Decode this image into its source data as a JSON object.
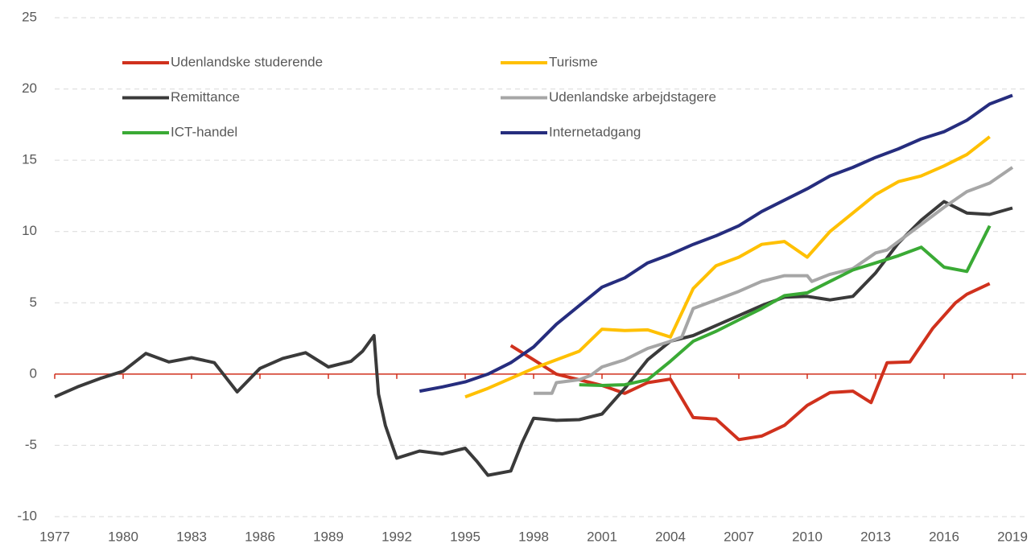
{
  "chart_data": {
    "type": "line",
    "grid": true,
    "legend": "top-left",
    "xlim": [
      1977,
      2019.6
    ],
    "ylim": [
      -10,
      25
    ],
    "xticks": [
      1977,
      1980,
      1983,
      1986,
      1989,
      1992,
      1995,
      1998,
      2001,
      2004,
      2007,
      2010,
      2013,
      2016,
      2019
    ],
    "yticks": [
      -10,
      -5,
      0,
      5,
      10,
      15,
      20,
      25
    ],
    "series": [
      {
        "name": "Udenlandske studerende",
        "color": "#d0311d",
        "x": [
          1997,
          1998,
          1999,
          2000,
          2001,
          2002,
          2003,
          2004,
          2005,
          2006,
          2007,
          2008,
          2009,
          2010,
          2011,
          2012,
          2012.8,
          2013.5,
          2014.5,
          2015.5,
          2016.5,
          2017,
          2018
        ],
        "values": [
          2.0,
          1.0,
          0,
          -0.4,
          -0.8,
          -1.35,
          -0.6,
          -0.35,
          -3.05,
          -3.15,
          -4.6,
          -4.35,
          -3.6,
          -2.2,
          -1.3,
          -1.2,
          -2.0,
          0.8,
          0.85,
          3.2,
          5.0,
          5.6,
          6.35
        ]
      },
      {
        "name": "Turisme",
        "color": "#ffc000",
        "x": [
          1995,
          1996,
          1997,
          1998,
          1999,
          2000,
          2001,
          2002,
          2003,
          2004,
          2005,
          2006,
          2007,
          2008,
          2009,
          2010,
          2011,
          2012,
          2013,
          2014,
          2015,
          2016,
          2017,
          2018
        ],
        "values": [
          -1.6,
          -1.0,
          -0.3,
          0.4,
          1.0,
          1.6,
          3.15,
          3.05,
          3.1,
          2.6,
          6.0,
          7.6,
          8.2,
          9.1,
          9.3,
          8.2,
          10.0,
          11.3,
          12.6,
          13.5,
          13.9,
          14.6,
          15.4,
          16.65
        ]
      },
      {
        "name": "Remittance",
        "color": "#3a3a3a",
        "x": [
          1977,
          1978,
          1979,
          1980,
          1981,
          1982,
          1983,
          1984,
          1985,
          1986,
          1987,
          1988,
          1989,
          1990,
          1990.5,
          1991,
          1991.2,
          1991.5,
          1991.8,
          1992,
          1993,
          1994,
          1995,
          1995.5,
          1996,
          1997,
          1997.5,
          1998,
          1999,
          2000,
          2001,
          2002,
          2003,
          2004,
          2005,
          2006,
          2007,
          2008,
          2009,
          2010,
          2011,
          2012,
          2013,
          2014,
          2015,
          2016,
          2017,
          2018,
          2019
        ],
        "values": [
          -1.6,
          -0.9,
          -0.3,
          0.2,
          1.45,
          0.85,
          1.15,
          0.8,
          -1.25,
          0.4,
          1.1,
          1.5,
          0.5,
          0.9,
          1.6,
          2.7,
          -1.4,
          -3.6,
          -5.0,
          -5.9,
          -5.4,
          -5.6,
          -5.2,
          -6.1,
          -7.1,
          -6.8,
          -4.8,
          -3.1,
          -3.25,
          -3.2,
          -2.8,
          -1.0,
          1.0,
          2.3,
          2.7,
          3.4,
          4.1,
          4.8,
          5.4,
          5.45,
          5.2,
          5.45,
          7.1,
          9.2,
          10.8,
          12.1,
          11.3,
          11.2,
          11.65
        ]
      },
      {
        "name": "Udenlandske arbejdstagere",
        "color": "#a6a6a6",
        "x": [
          1998,
          1998.8,
          1999,
          2000,
          2000.5,
          2001,
          2002,
          2003,
          2004,
          2004.5,
          2005,
          2006,
          2007,
          2008,
          2009,
          2010,
          2010.2,
          2011,
          2012,
          2013,
          2013.5,
          2014,
          2015,
          2016,
          2017,
          2018,
          2019
        ],
        "values": [
          -1.35,
          -1.35,
          -0.6,
          -0.4,
          -0.1,
          0.5,
          1.0,
          1.8,
          2.3,
          2.6,
          4.6,
          5.2,
          5.8,
          6.5,
          6.9,
          6.9,
          6.5,
          7.0,
          7.4,
          8.5,
          8.7,
          9.3,
          10.5,
          11.7,
          12.8,
          13.4,
          14.5
        ]
      },
      {
        "name": "ICT-handel",
        "color": "#3aaa35",
        "x": [
          2000,
          2001,
          2002,
          2003,
          2004,
          2005,
          2006,
          2007,
          2008,
          2009,
          2010,
          2011,
          2012,
          2013,
          2014,
          2015,
          2016,
          2017,
          2018
        ],
        "values": [
          -0.75,
          -0.8,
          -0.75,
          -0.4,
          0.9,
          2.3,
          3.0,
          3.8,
          4.6,
          5.5,
          5.7,
          6.5,
          7.3,
          7.8,
          8.3,
          8.9,
          7.5,
          7.2,
          10.4
        ]
      },
      {
        "name": "Internetadgang",
        "color": "#262d7e",
        "x": [
          1993,
          1994,
          1995,
          1996,
          1997,
          1998,
          1999,
          2000,
          2001,
          2002,
          2003,
          2004,
          2005,
          2006,
          2007,
          2008,
          2009,
          2010,
          2011,
          2012,
          2013,
          2014,
          2015,
          2016,
          2017,
          2018,
          2019
        ],
        "values": [
          -1.2,
          -0.9,
          -0.55,
          0,
          0.8,
          1.9,
          3.5,
          4.8,
          6.1,
          6.75,
          7.8,
          8.4,
          9.1,
          9.7,
          10.4,
          11.4,
          12.2,
          13.0,
          13.9,
          14.5,
          15.2,
          15.8,
          16.5,
          17.0,
          17.8,
          18.95,
          19.55
        ]
      }
    ]
  }
}
